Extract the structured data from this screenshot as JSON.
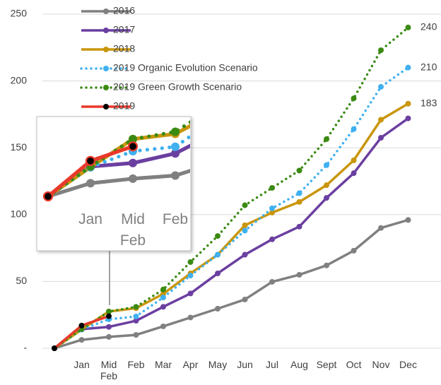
{
  "chart_data": {
    "type": "line",
    "categories": [
      null,
      "Jan",
      "Mid Feb",
      "Feb",
      "Mar",
      "Apr",
      "May",
      "Jun",
      "Jul",
      "Aug",
      "Sept",
      "Oct",
      "Nov",
      "Dec"
    ],
    "series": [
      {
        "name": "2016",
        "color": "#808080",
        "values": [
          0,
          6.3,
          8.5,
          10,
          16.4,
          23,
          29.6,
          36.5,
          49.7,
          55,
          62,
          73,
          90,
          96
        ]
      },
      {
        "name": "2017",
        "color": "#6b3fa0",
        "values": [
          0,
          14.3,
          16,
          20.6,
          31,
          41,
          56,
          70,
          81.5,
          91,
          112.5,
          131,
          157.5,
          172
        ]
      },
      {
        "name": "2018",
        "color": "#c9960c",
        "values": [
          0,
          14,
          27.5,
          30,
          40.7,
          56,
          70,
          92,
          101.5,
          109.5,
          122,
          140.6,
          171,
          183
        ],
        "value_labels": {
          "13": "183"
        }
      },
      {
        "name": "2019 Organic Evolution Scenario",
        "color": "#3fb0f0",
        "dotted": true,
        "values": [
          0,
          14,
          21.7,
          23.8,
          38,
          54.4,
          70,
          88,
          104.7,
          116,
          137,
          164,
          195.6,
          210
        ],
        "value_labels": {
          "13": "210"
        }
      },
      {
        "name": "2019 Green Growth Scenario",
        "color": "#3a8a12",
        "dotted": true,
        "values": [
          0,
          14.3,
          27.5,
          31,
          44,
          64.5,
          84,
          107,
          120,
          133,
          156.5,
          187,
          223,
          240
        ],
        "value_labels": {
          "13": "240"
        }
      },
      {
        "name": "2019",
        "color": "#e8392b",
        "marker_color": "#000000",
        "values": [
          0,
          17,
          24,
          null,
          null,
          null,
          null,
          null,
          null,
          null,
          null,
          null,
          null,
          null
        ]
      }
    ],
    "ylim": [
      0,
      250
    ],
    "yticks": [
      {
        "value": 0,
        "label": "-"
      },
      50,
      100,
      150,
      200,
      250
    ],
    "grid": true,
    "legend": "top"
  }
}
